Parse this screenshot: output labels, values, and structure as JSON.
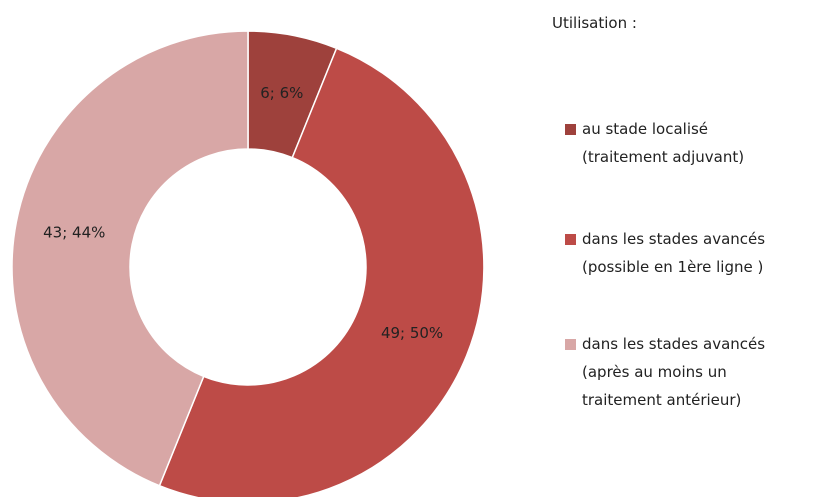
{
  "chart_data": {
    "type": "donut",
    "legend_title": "Utilisation :",
    "series": [
      {
        "name": "au stade localisé\n(traitement adjuvant)",
        "color": "#9e413c",
        "values": [
          6
        ],
        "value_labels": [
          "6; 6%"
        ]
      },
      {
        "name": "dans les stades avancés\n(possible en 1ère ligne )",
        "color": "#bd4b47",
        "values": [
          49
        ],
        "value_labels": [
          "49; 50%"
        ]
      },
      {
        "name": "dans les stades avancés\n(après au moins un\ntraitement antérieur)",
        "color": "#d8a7a6",
        "values": [
          43
        ],
        "value_labels": [
          "43; 44%"
        ]
      }
    ],
    "legend": "right"
  }
}
